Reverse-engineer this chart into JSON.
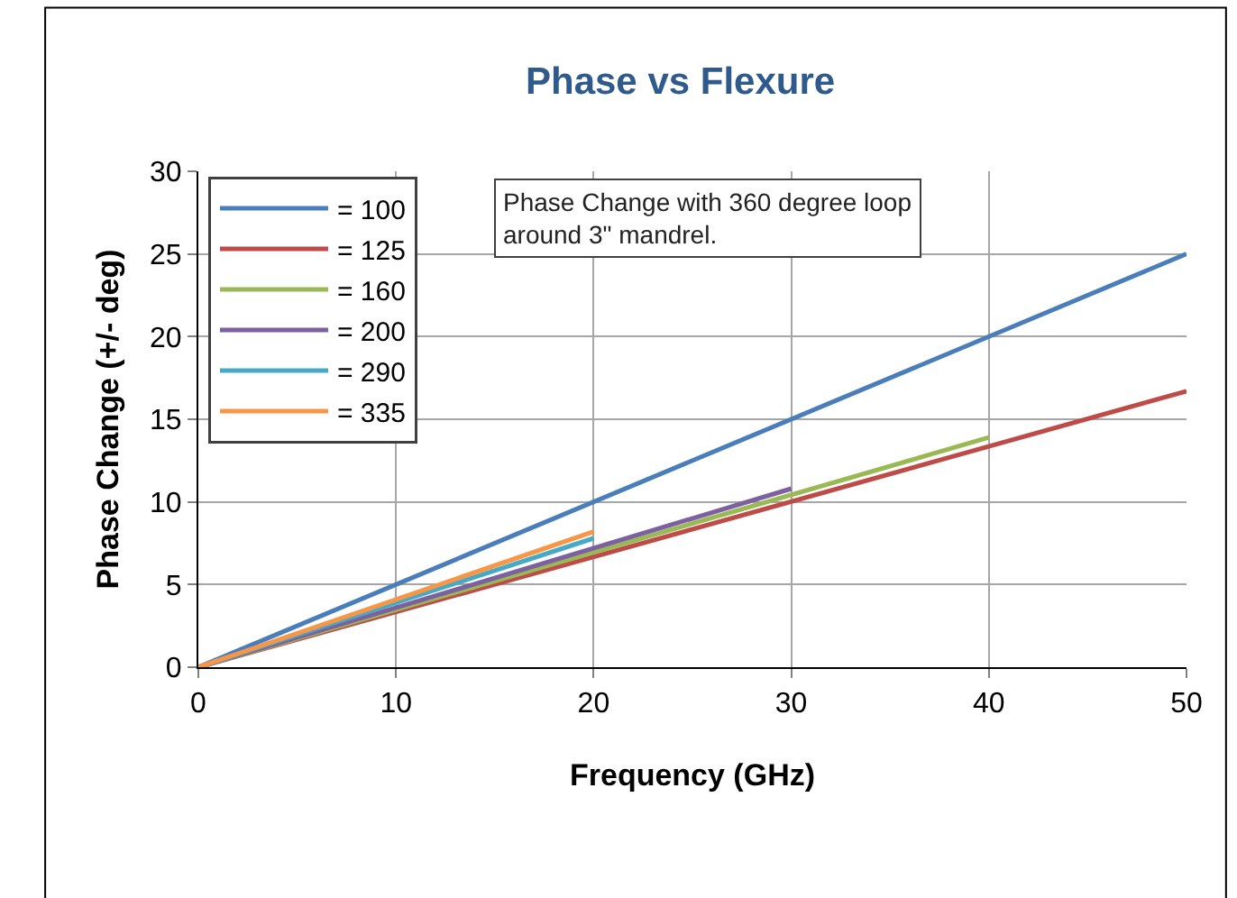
{
  "chart_data": {
    "type": "line",
    "title": "Phase vs Flexure",
    "xlabel": "Frequency (GHz)",
    "ylabel": "Phase Change (+/- deg)",
    "annotations": [
      "Phase Change with 360 degree loop\naround 3\" mandrel."
    ],
    "series": [
      {
        "name": "= 100",
        "color": "#4a7ebb",
        "x": [
          0,
          50
        ],
        "values": [
          0,
          25
        ]
      },
      {
        "name": "= 125",
        "color": "#be4b48",
        "x": [
          0,
          50
        ],
        "values": [
          0,
          16.7
        ]
      },
      {
        "name": "= 160",
        "color": "#98b954",
        "x": [
          0,
          40
        ],
        "values": [
          0,
          13.9
        ]
      },
      {
        "name": "= 200",
        "color": "#7d60a0",
        "x": [
          0,
          30
        ],
        "values": [
          0,
          10.8
        ]
      },
      {
        "name": "= 290",
        "color": "#46aac5",
        "x": [
          0,
          20
        ],
        "values": [
          0,
          7.8
        ]
      },
      {
        "name": "= 335",
        "color": "#f79646",
        "x": [
          0,
          20
        ],
        "values": [
          0,
          8.2
        ]
      }
    ],
    "xlim": [
      0,
      50
    ],
    "xticks": [
      0,
      10,
      20,
      30,
      40,
      50
    ],
    "ylim": [
      0,
      30
    ],
    "yticks": [
      0,
      5,
      10,
      15,
      20,
      25,
      30
    ],
    "grid": true,
    "legend": "top left",
    "marker": "none",
    "line_style": "solid"
  }
}
